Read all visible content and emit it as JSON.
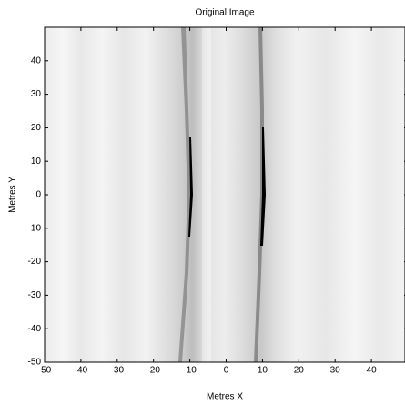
{
  "chart_data": {
    "type": "image",
    "title": "Original Image",
    "xlabel": "Metres X",
    "ylabel": "Metres Y",
    "xlim": [
      -50,
      50
    ],
    "ylim": [
      -50,
      50
    ],
    "xticks": [
      -50,
      -40,
      -30,
      -20,
      -10,
      0,
      10,
      20,
      30,
      40
    ],
    "yticks": [
      -50,
      -40,
      -30,
      -20,
      -10,
      0,
      10,
      20,
      30,
      40
    ]
  }
}
